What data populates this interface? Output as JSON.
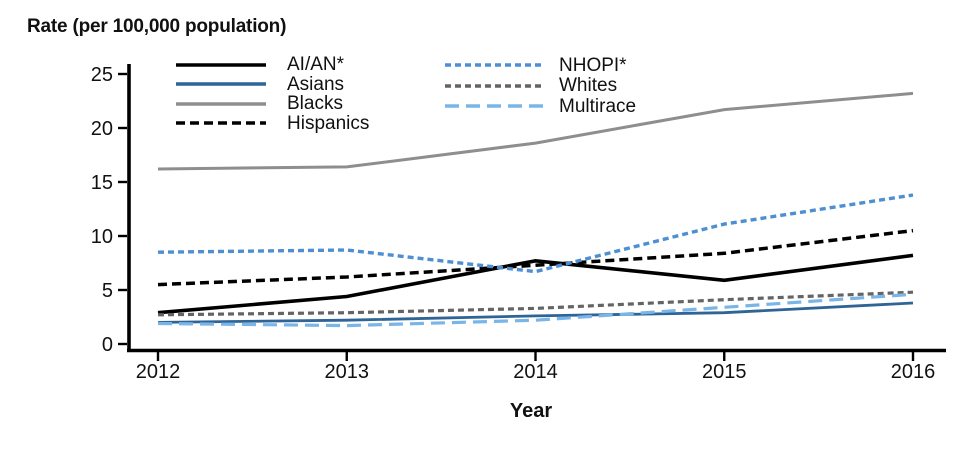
{
  "chart_data": {
    "type": "line",
    "title": "Rate (per 100,000 population)",
    "xlabel": "Year",
    "ylabel": "Rate (per 100,000 population)",
    "x": [
      2012,
      2013,
      2014,
      2015,
      2016
    ],
    "xticks": [
      "2012",
      "2013",
      "2014",
      "2015",
      "2016"
    ],
    "yticks": [
      "25",
      "20",
      "15",
      "10",
      "5",
      "0"
    ],
    "ylim": [
      0,
      25
    ],
    "grid": false,
    "legend_position": "top-inside-two-columns",
    "axis_color": "#000000",
    "series": [
      {
        "name": "AI/AN*",
        "values": [
          2.9,
          4.4,
          7.7,
          5.9,
          8.2
        ],
        "color": "#000000",
        "dash": "",
        "width": 3.6
      },
      {
        "name": "Asians",
        "values": [
          2.0,
          2.2,
          2.6,
          2.9,
          3.8
        ],
        "color": "#2f6496",
        "dash": "",
        "width": 2.8
      },
      {
        "name": "Blacks",
        "values": [
          16.2,
          16.4,
          18.6,
          21.7,
          23.2
        ],
        "color": "#8e8e8e",
        "dash": "",
        "width": 3.0
      },
      {
        "name": "Hispanics",
        "values": [
          5.5,
          6.2,
          7.3,
          8.4,
          10.5
        ],
        "color": "#000000",
        "dash": "9 5",
        "width": 3.5
      },
      {
        "name": "NHOPI*",
        "values": [
          8.5,
          8.7,
          6.7,
          11.1,
          13.8
        ],
        "color": "#4d8fd1",
        "dash": "6 4",
        "width": 3.4
      },
      {
        "name": "Whites",
        "values": [
          2.7,
          2.9,
          3.3,
          4.1,
          4.8
        ],
        "color": "#646464",
        "dash": "6 4",
        "width": 3.2
      },
      {
        "name": "Multirace",
        "values": [
          1.9,
          1.7,
          2.2,
          3.4,
          4.6
        ],
        "color": "#7ab5e8",
        "dash": "14 7",
        "width": 3.2
      }
    ],
    "legend_columns": {
      "column1_series_indexes": [
        0,
        1,
        2,
        3
      ],
      "column2_series_indexes": [
        4,
        5,
        6
      ]
    }
  }
}
